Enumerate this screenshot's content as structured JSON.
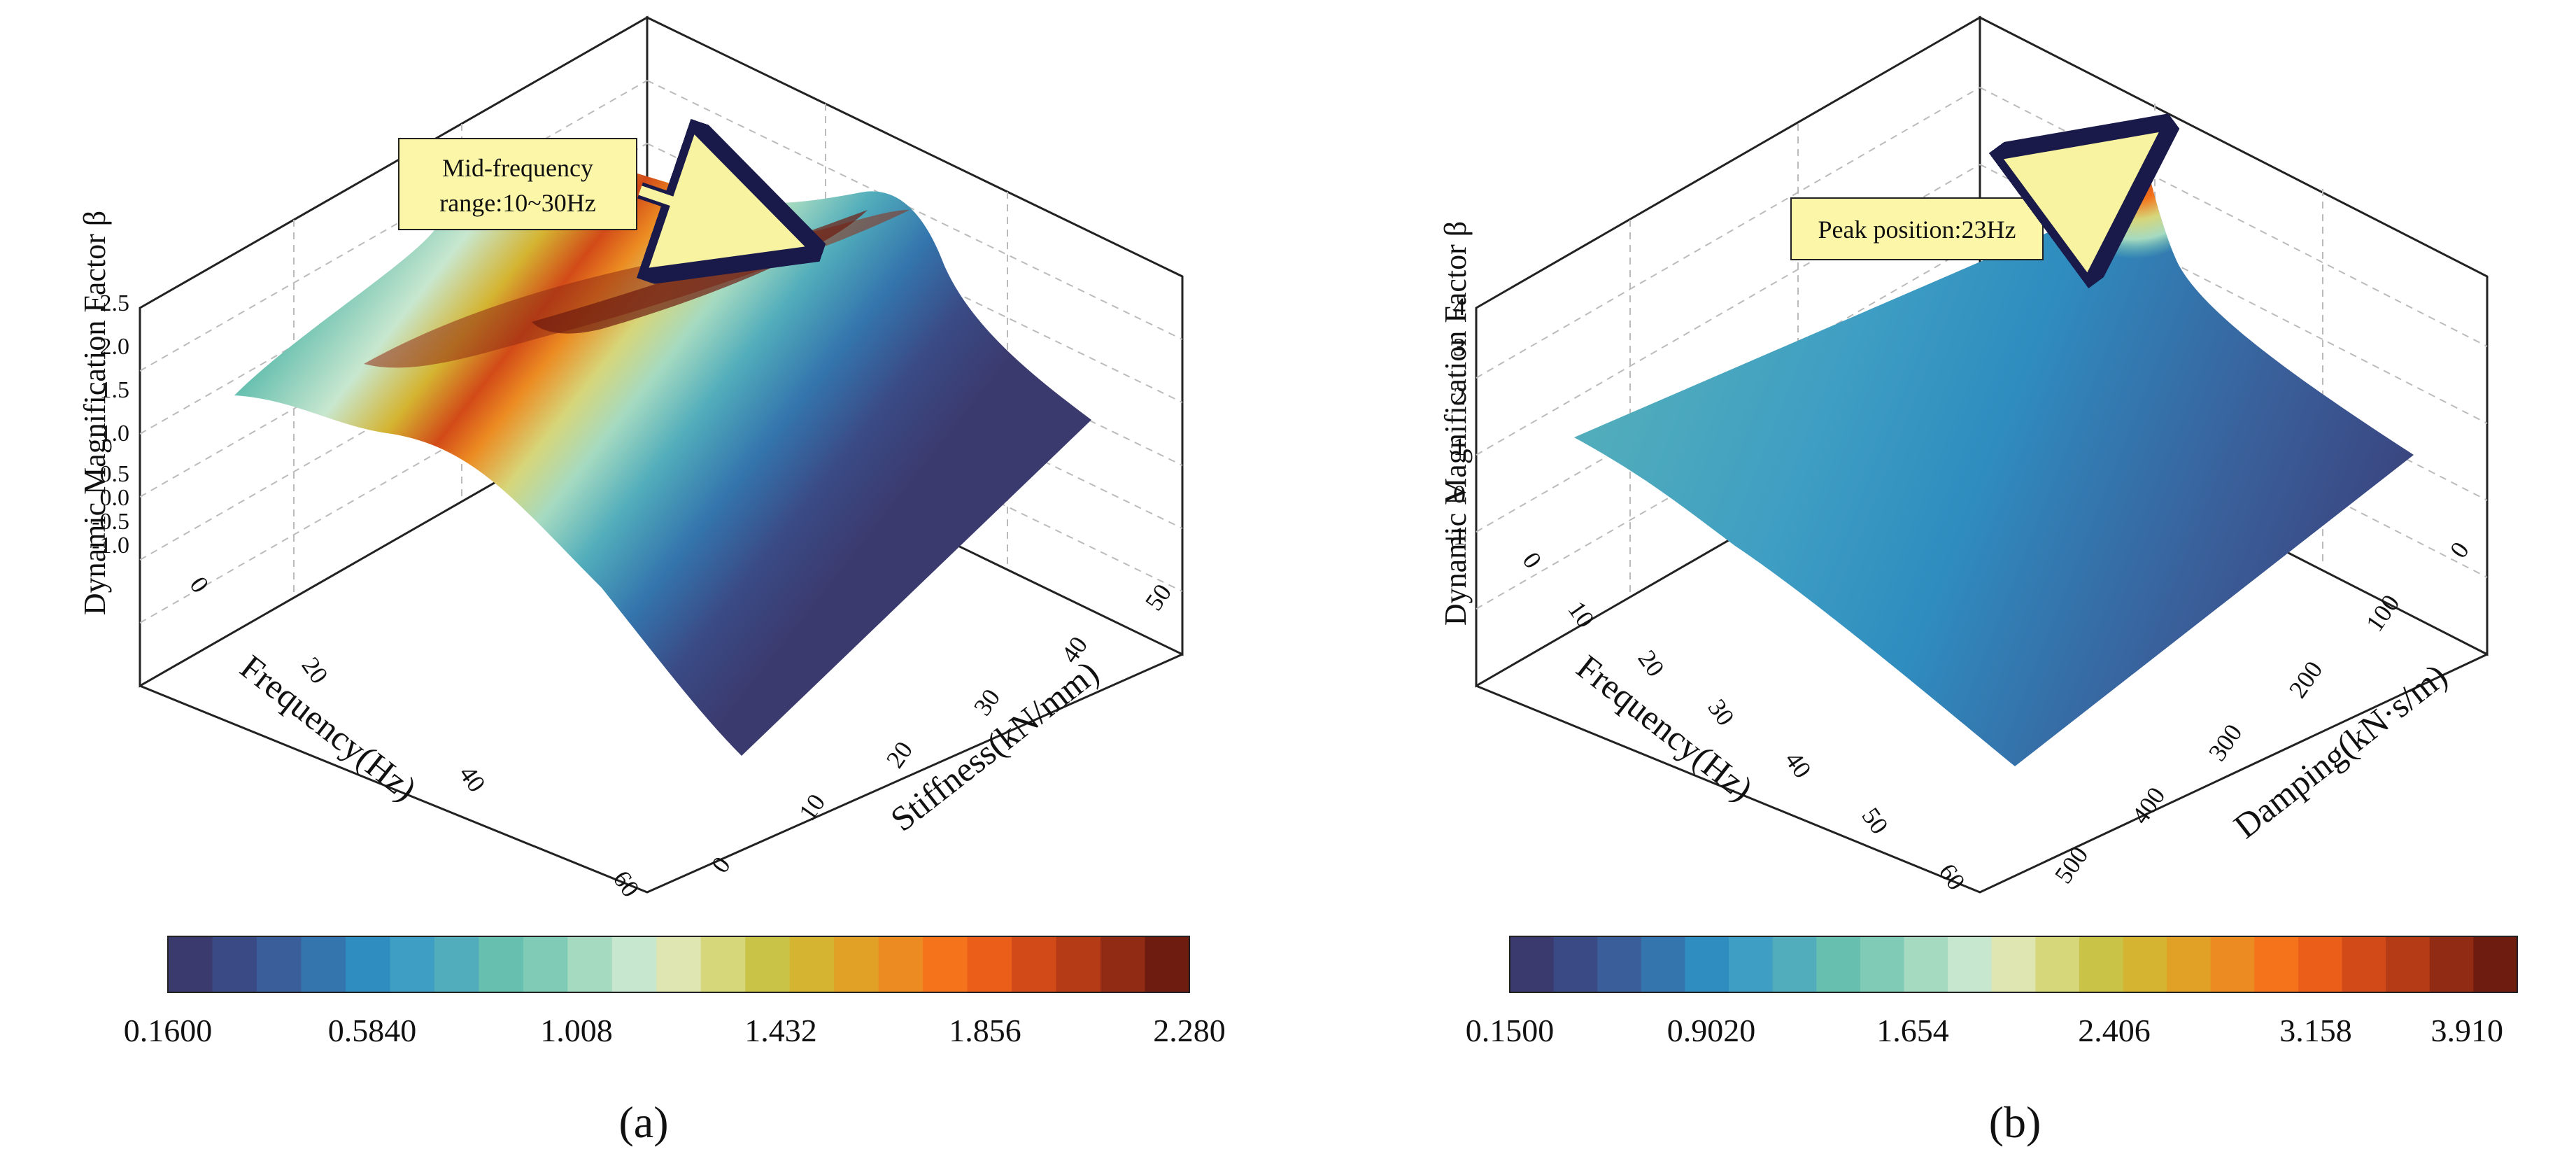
{
  "palette": [
    "#3b3a6e",
    "#3a4a85",
    "#3a5e99",
    "#3475ad",
    "#2f8dbf",
    "#3f9ec3",
    "#51adbb",
    "#66bfaf",
    "#80cbb5",
    "#a5dac1",
    "#c8e7cf",
    "#dfe6b2",
    "#d6d67a",
    "#c9c448",
    "#d4b431",
    "#e1a026",
    "#ec8b22",
    "#f4731b",
    "#ea5e1a",
    "#d24a18",
    "#b53a16",
    "#922b14",
    "#6e1b10"
  ],
  "chart_data": [
    {
      "id": "a",
      "panel_label": "(a)",
      "type": "surface3d",
      "title": "",
      "zlabel": "Dynamic Magnification Factor β",
      "xlabel": "Frequency(Hz)",
      "ylabel": "Stiffness(kN/mm)",
      "x_ticks": [
        "0",
        "20",
        "40",
        "60"
      ],
      "y_ticks": [
        "0",
        "10",
        "20",
        "30",
        "40",
        "50"
      ],
      "z_ticks": [
        "-1.0",
        "-0.5",
        "0.0",
        "0.5",
        "1.0",
        "1.5",
        "2.0",
        "2.5"
      ],
      "x_range": [
        0,
        60
      ],
      "y_range": [
        0,
        50
      ],
      "z_range": [
        -1.0,
        2.5
      ],
      "annotation": {
        "line1": "Mid-frequency",
        "line2": "range:10~30Hz",
        "points_to_frequency_hz": 20
      },
      "colorbar": {
        "min": 0.16,
        "max": 2.28,
        "labels": [
          "0.1600",
          "0.5840",
          "1.008",
          "1.432",
          "1.856",
          "2.280"
        ]
      },
      "surface_description": "β rises to about 2.28 within 10~30 Hz; highest at low stiffness, falling to about 0.16 at 60 Hz"
    },
    {
      "id": "b",
      "panel_label": "(b)",
      "type": "surface3d",
      "title": "",
      "zlabel": "Dynamic Magnification Factor β",
      "xlabel": "Frequency(Hz)",
      "ylabel": "Damping(kN·s/m)",
      "x_ticks": [
        "0",
        "10",
        "20",
        "30",
        "40",
        "50",
        "60"
      ],
      "y_ticks": [
        "0",
        "100",
        "200",
        "300",
        "400",
        "500"
      ],
      "z_ticks": [
        "-1",
        "0",
        "1",
        "2",
        "3",
        "4"
      ],
      "x_range": [
        0,
        60
      ],
      "y_range": [
        0,
        500
      ],
      "z_range": [
        -1,
        4
      ],
      "annotation": {
        "line1": "Peak position:23Hz",
        "points_to_frequency_hz": 23
      },
      "colorbar": {
        "min": 0.15,
        "max": 3.91,
        "labels": [
          "0.1500",
          "0.9020",
          "1.654",
          "2.406",
          "3.158",
          "3.910"
        ]
      },
      "surface_description": "sharp peak of about 3.91 at 23 Hz with zero damping; β decays with damping and frequency toward 0.15"
    }
  ]
}
